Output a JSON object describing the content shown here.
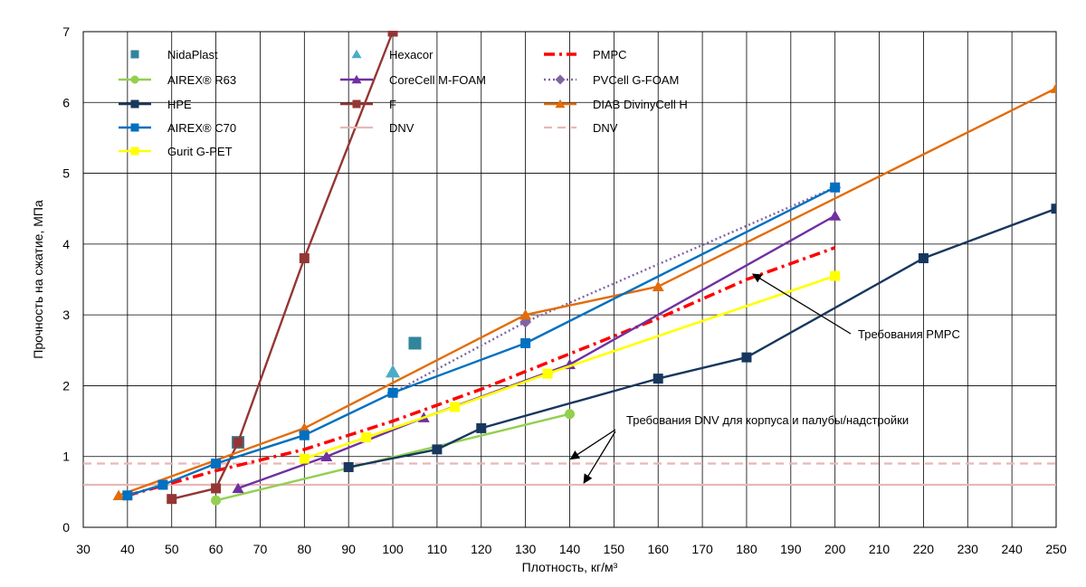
{
  "chart_data": {
    "type": "line",
    "xlabel": "Плотность, кг/м³",
    "ylabel": "Прочность на сжатие, МПа",
    "xlim": [
      30,
      250
    ],
    "ylim": [
      0,
      7
    ],
    "x_ticks": [
      "30",
      "40",
      "50",
      "60",
      "70",
      "80",
      "90",
      "100",
      "110",
      "120",
      "130",
      "140",
      "150",
      "160",
      "170",
      "180",
      "190",
      "200",
      "210",
      "220",
      "230",
      "240",
      "250"
    ],
    "y_ticks": [
      "0",
      "1",
      "2",
      "3",
      "4",
      "5",
      "6",
      "7"
    ],
    "grid": true,
    "legend_position": "top-left, inside plot, 3 columns",
    "series": [
      {
        "name": "NidaPlast",
        "color": "#31859c",
        "marker": "square",
        "line": "none",
        "points": [
          [
            65,
            1.2
          ],
          [
            105,
            2.6
          ]
        ]
      },
      {
        "name": "Hexacor",
        "color": "#4bacc6",
        "marker": "triangle",
        "line": "none",
        "points": [
          [
            100,
            2.2
          ]
        ]
      },
      {
        "name": "PMPC",
        "color": "#ff0000",
        "marker": "none",
        "line": "dashdot",
        "points": [
          [
            40,
            0.45
          ],
          [
            60,
            0.8
          ],
          [
            80,
            1.1
          ],
          [
            100,
            1.5
          ],
          [
            120,
            1.95
          ],
          [
            140,
            2.45
          ],
          [
            160,
            2.95
          ],
          [
            180,
            3.5
          ],
          [
            200,
            3.95
          ]
        ]
      },
      {
        "name": "AIREX® R63",
        "color": "#92d050",
        "marker": "circle",
        "line": "solid",
        "points": [
          [
            60,
            0.38
          ],
          [
            140,
            1.6
          ]
        ]
      },
      {
        "name": "CoreCell M-FOAM",
        "color": "#7030a0",
        "marker": "triangle",
        "line": "solid",
        "points": [
          [
            65,
            0.55
          ],
          [
            85,
            1.0
          ],
          [
            107,
            1.55
          ],
          [
            140,
            2.3
          ],
          [
            200,
            4.4
          ]
        ]
      },
      {
        "name": "PVCell G-FOAM",
        "color": "#8064a2",
        "marker": "diamond",
        "line": "dotted",
        "points": [
          [
            100,
            1.9
          ],
          [
            130,
            2.9
          ],
          [
            200,
            4.8
          ]
        ]
      },
      {
        "name": "HPE",
        "color": "#17375e",
        "marker": "square",
        "line": "solid",
        "points": [
          [
            90,
            0.85
          ],
          [
            110,
            1.1
          ],
          [
            120,
            1.4
          ],
          [
            160,
            2.1
          ],
          [
            180,
            2.4
          ],
          [
            220,
            3.8
          ],
          [
            250,
            4.5
          ]
        ]
      },
      {
        "name": "F",
        "color": "#943634",
        "marker": "square",
        "line": "solid",
        "points": [
          [
            50,
            0.4
          ],
          [
            60,
            0.55
          ],
          [
            65,
            1.2
          ],
          [
            80,
            3.8
          ],
          [
            100,
            7.0
          ]
        ]
      },
      {
        "name": "DIAB DivinyCell H",
        "color": "#e36c09",
        "marker": "triangle",
        "line": "solid",
        "points": [
          [
            38,
            0.45
          ],
          [
            80,
            1.4
          ],
          [
            130,
            3.0
          ],
          [
            160,
            3.4
          ],
          [
            250,
            6.2
          ]
        ]
      },
      {
        "name": "AIREX® C70",
        "color": "#0070c0",
        "marker": "square",
        "line": "solid",
        "points": [
          [
            40,
            0.45
          ],
          [
            48,
            0.6
          ],
          [
            60,
            0.9
          ],
          [
            80,
            1.3
          ],
          [
            100,
            1.9
          ],
          [
            130,
            2.6
          ],
          [
            200,
            4.8
          ]
        ]
      },
      {
        "name": "DNV",
        "color": "#e6b8b7",
        "marker": "none",
        "line": "solid",
        "points": [
          [
            30,
            0.6
          ],
          [
            250,
            0.6
          ]
        ]
      },
      {
        "name": "DNV",
        "color": "#e6b8b7",
        "marker": "none",
        "line": "dashed",
        "points": [
          [
            30,
            0.9
          ],
          [
            250,
            0.9
          ]
        ]
      },
      {
        "name": "Gurit G-PET",
        "color": "#ffff00",
        "marker": "square",
        "line": "solid",
        "points": [
          [
            80,
            0.97
          ],
          [
            94,
            1.27
          ],
          [
            114,
            1.7
          ],
          [
            135,
            2.17
          ],
          [
            200,
            3.55
          ]
        ]
      }
    ],
    "annotations": [
      {
        "text": "Требования PMPC",
        "arrow_to": [
          181,
          3.55
        ],
        "text_at": [
          200,
          2.8
        ]
      },
      {
        "text": "Требования DNV для корпуса и палубы/надстройки",
        "arrows_to": [
          [
            140,
            0.9
          ],
          [
            143,
            0.6
          ]
        ],
        "text_at": [
          152,
          1.5
        ]
      }
    ]
  }
}
